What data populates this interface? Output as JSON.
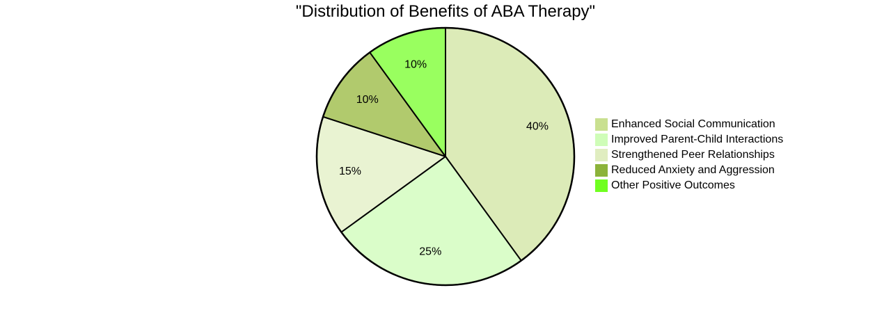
{
  "chart_data": {
    "type": "pie",
    "title": "\"Distribution of Benefits of ABA Therapy\"",
    "slices": [
      {
        "label": "Enhanced Social Communication",
        "value": 40,
        "display": "40%",
        "color": "#dcebb8",
        "legend_color": "#c9e090"
      },
      {
        "label": "Improved Parent-Child Interactions",
        "value": 25,
        "display": "25%",
        "color": "#dafdc9",
        "legend_color": "#cffdb8"
      },
      {
        "label": "Strengthened Peer Relationships",
        "value": 15,
        "display": "15%",
        "color": "#e9f3d2",
        "legend_color": "#e0edc0"
      },
      {
        "label": "Reduced Anxiety and Aggression",
        "value": 10,
        "display": "10%",
        "color": "#b1ca6d",
        "legend_color": "#8cb33a"
      },
      {
        "label": "Other Positive Outcomes",
        "value": 10,
        "display": "10%",
        "color": "#99ff5f",
        "legend_color": "#70ff20"
      }
    ],
    "legend_position": "right"
  }
}
